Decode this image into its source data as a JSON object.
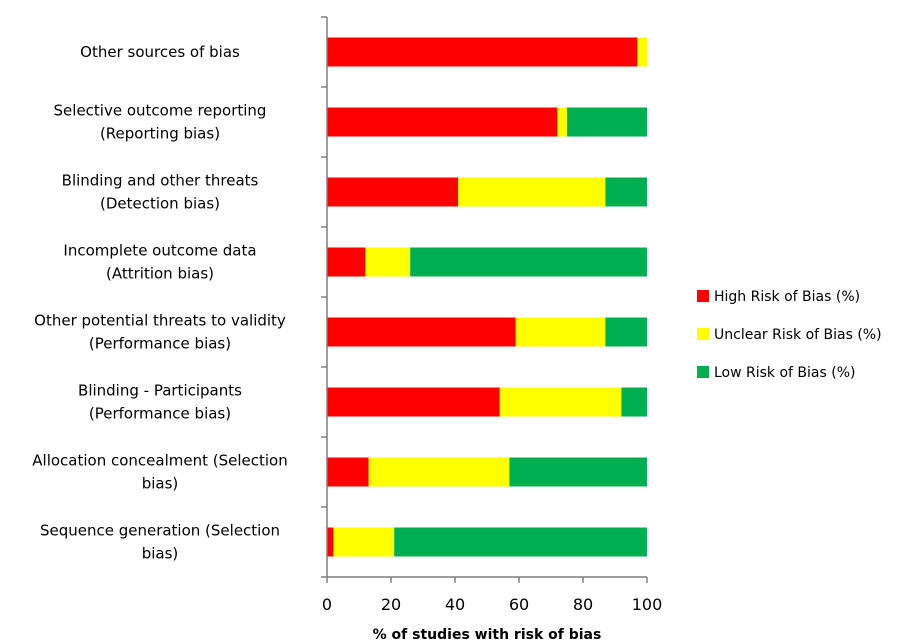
{
  "chart_data": {
    "type": "bar",
    "orientation": "horizontal",
    "stacked": true,
    "categories": [
      [
        "Other sources of bias"
      ],
      [
        "Selective outcome reporting",
        "(Reporting bias)"
      ],
      [
        "Blinding and other threats",
        "(Detection bias)"
      ],
      [
        "Incomplete outcome data",
        "(Attrition bias)"
      ],
      [
        "Other potential threats to validity",
        "(Performance bias)"
      ],
      [
        "Blinding - Participants",
        "(Performance bias)"
      ],
      [
        "Allocation concealment (Selection",
        "bias)"
      ],
      [
        "Sequence generation (Selection",
        "bias)"
      ]
    ],
    "series": [
      {
        "name": "High Risk of Bias (%)",
        "color": "#ff0000",
        "values": [
          97,
          72,
          41,
          12,
          59,
          54,
          13,
          2
        ]
      },
      {
        "name": "Unclear Risk of Bias (%)",
        "color": "#ffff00",
        "values": [
          3,
          3,
          46,
          14,
          28,
          38,
          44,
          19
        ]
      },
      {
        "name": "Low Risk of Bias (%)",
        "color": "#00b050",
        "values": [
          0,
          25,
          13,
          74,
          13,
          8,
          43,
          79
        ]
      }
    ],
    "xlabel": "% of studies with risk of bias",
    "xlim": [
      0,
      100
    ],
    "xticks": [
      0,
      20,
      40,
      60,
      80,
      100
    ],
    "legend_position": "right",
    "grid": false
  }
}
